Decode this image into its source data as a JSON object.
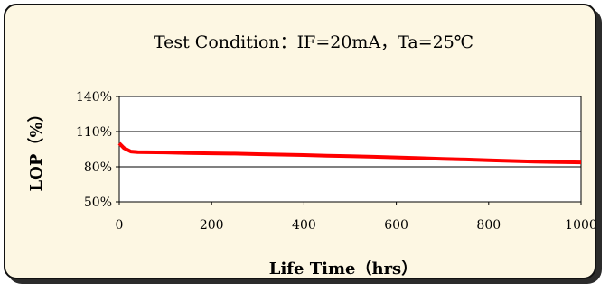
{
  "chart_data": {
    "type": "line",
    "title": "Test Condition：IF=20mA，Ta=25℃",
    "xlabel": "Life Time（hrs）",
    "ylabel": "LOP（%）",
    "xlim": [
      0,
      1000
    ],
    "ylim": [
      50,
      140
    ],
    "yticks": [
      50,
      80,
      110,
      140
    ],
    "ytick_labels": [
      "50%",
      "80%",
      "110%",
      "140%"
    ],
    "xticks": [
      0,
      200,
      400,
      600,
      800,
      1000
    ],
    "xtick_labels": [
      "0",
      "200",
      "400",
      "600",
      "800",
      "1000"
    ],
    "grid": "horizontal",
    "colors": {
      "line": "#ff0000",
      "frame_bg": "#fdf7e3",
      "plot_bg": "#ffffff"
    },
    "series": [
      {
        "x": [
          0,
          10,
          25,
          40,
          60,
          100,
          150,
          200,
          250,
          300,
          350,
          400,
          450,
          500,
          550,
          600,
          650,
          700,
          750,
          800,
          850,
          900,
          950,
          1000
        ],
        "values": [
          100,
          96,
          93,
          92.5,
          92.4,
          92.2,
          91.8,
          91.5,
          91.2,
          90.8,
          90.4,
          90,
          89.5,
          89,
          88.5,
          88,
          87.4,
          86.8,
          86.2,
          85.6,
          85,
          84.5,
          84,
          83.8
        ]
      }
    ]
  }
}
